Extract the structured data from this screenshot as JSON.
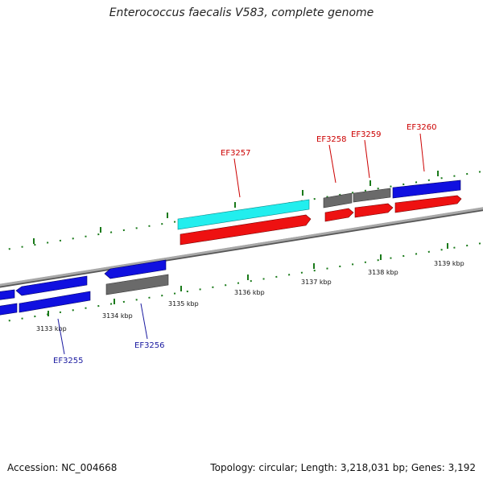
{
  "title": "Enterococcus faecalis V583, complete genome",
  "footer": {
    "accession": "Accession: NC_004668",
    "summary": "Topology: circular; Length: 3,218,031 bp; Genes: 3,192"
  },
  "colors": {
    "backbone": "#8a8a8a",
    "tick": "#1a7a1a",
    "gene_blue": "#1010e0",
    "gene_red": "#ee1111",
    "gene_cyan": "#22eeee",
    "gene_gray": "#6a6a6a",
    "label_red": "#cc0000",
    "label_blue": "#1a1aa0"
  },
  "scale": {
    "unit": "kbp",
    "labels": [
      "3133 kbp",
      "3134 kbp",
      "3135 kbp",
      "3136 kbp",
      "3137 kbp",
      "3138 kbp",
      "3139 kbp"
    ]
  },
  "gene_labels": [
    "EF3255",
    "EF3256",
    "EF3257",
    "EF3258",
    "EF3259",
    "EF3260"
  ]
}
